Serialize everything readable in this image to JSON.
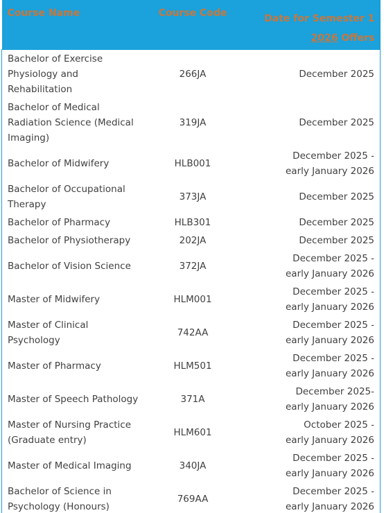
{
  "table": {
    "header": [
      "Course Name",
      "Course Code",
      {
        "line1": "Date for Semester 1",
        "year": "2026",
        "rest": "Offers"
      }
    ],
    "rows": [
      [
        "Bachelor of Exercise Physiology and Rehabilitation",
        "266JA",
        "December 2025"
      ],
      [
        "Bachelor of Medical Radiation Science (Medical Imaging)",
        "319JA",
        "December 2025"
      ],
      [
        "Bachelor of Midwifery",
        "HLB001",
        "December 2025 -\nearly January 2026"
      ],
      [
        "Bachelor of Occupational Therapy",
        "373JA",
        "December 2025"
      ],
      [
        "Bachelor of Pharmacy",
        "HLB301",
        "December 2025"
      ],
      [
        "Bachelor of Physiotherapy",
        "202JA",
        "December 2025"
      ],
      [
        "Bachelor of Vision Science",
        "372JA",
        "December 2025 -\nearly January 2026"
      ],
      [
        "Master of Midwifery",
        "HLM001",
        "December 2025 -\nearly January 2026"
      ],
      [
        "Master of Clinical Psychology",
        "742AA",
        "December 2025 -\nearly January 2026"
      ],
      [
        "Master of Pharmacy",
        "HLM501",
        "December 2025 -\nearly January 2026"
      ],
      [
        "Master of Speech Pathology",
        "371A",
        "December 2025-\nearly January 2026"
      ],
      [
        "Master of Nursing Practice (Graduate entry)",
        "HLM601",
        "October 2025 -\nearly January 2026"
      ],
      [
        "Master of Medical Imaging",
        "340JA",
        "December 2025 -\nearly January 2026"
      ],
      [
        "Bachelor of Science in Psychology (Honours)",
        "769AA",
        "December 2025 -\nearly January 2026"
      ]
    ]
  }
}
